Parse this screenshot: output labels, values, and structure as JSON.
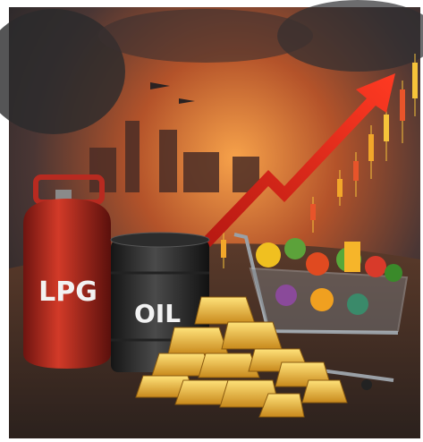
{
  "image": {
    "labels": {
      "cylinder": "LPG",
      "barrel": "OIL"
    }
  }
}
